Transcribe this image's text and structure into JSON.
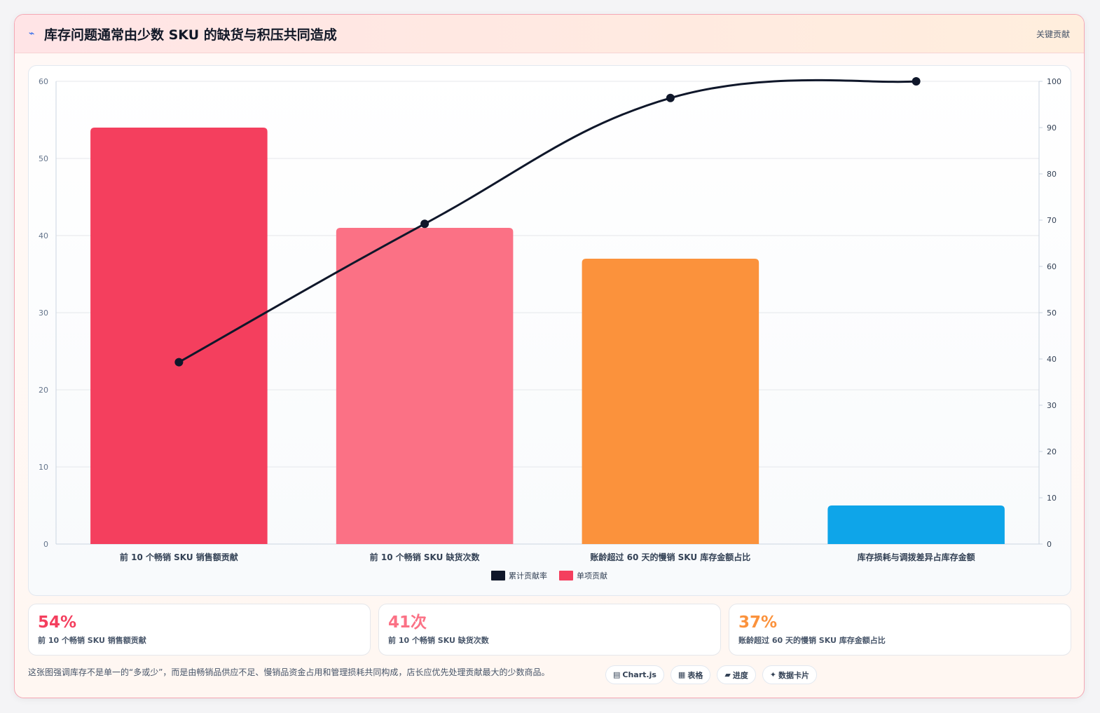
{
  "header": {
    "icon": "trend-icon",
    "title": "库存问题通常由少数 SKU 的缺货与积压共同造成",
    "tag": "关键贡献"
  },
  "chart_data": {
    "type": "bar",
    "categories": [
      "前 10 个畅销 SKU 销售额贡献",
      "前 10 个畅销 SKU 缺货次数",
      "账龄超过 60 天的慢销 SKU 库存金额占比",
      "库存损耗与调拨差异占库存金额"
    ],
    "series": [
      {
        "name": "单项贡献",
        "type": "bar",
        "axis": "left",
        "values": [
          54,
          41,
          37,
          5
        ],
        "colors": [
          "#f43f5e",
          "#fb7185",
          "#fb923c",
          "#0ea5e9"
        ]
      },
      {
        "name": "累计贡献率",
        "type": "line",
        "axis": "right",
        "values": [
          39.3,
          69.2,
          96.4,
          100
        ],
        "color": "#0f172a"
      }
    ],
    "y_left": {
      "min": 0,
      "max": 60,
      "ticks": [
        0,
        10,
        20,
        30,
        40,
        50,
        60
      ]
    },
    "y_right": {
      "min": 0,
      "max": 100,
      "ticks": [
        0,
        10,
        20,
        30,
        40,
        50,
        60,
        70,
        80,
        90,
        100
      ]
    },
    "grid": true,
    "legend": {
      "position": "bottom",
      "items": [
        {
          "label": "累计贡献率",
          "color": "#0f172a"
        },
        {
          "label": "单项贡献",
          "color": "#f43f5e"
        }
      ]
    }
  },
  "stats": [
    {
      "value": "54%",
      "label": "前 10 个畅销 SKU 销售额贡献",
      "color": "#f43f5e"
    },
    {
      "value": "41次",
      "label": "前 10 个畅销 SKU 缺货次数",
      "color": "#fb7185"
    },
    {
      "value": "37%",
      "label": "账龄超过 60 天的慢销 SKU 库存金额占比",
      "color": "#fb923c"
    }
  ],
  "footer": {
    "note": "这张图强调库存不是单一的“多或少”，而是由畅销品供应不足、慢销品资金占用和管理损耗共同构成，店长应优先处理贡献最大的少数商品。",
    "pills": [
      {
        "icon": "▤",
        "label": "Chart.js"
      },
      {
        "icon": "▦",
        "label": "表格"
      },
      {
        "icon": "▰",
        "label": "进度"
      },
      {
        "icon": "✦",
        "label": "数据卡片"
      }
    ]
  }
}
